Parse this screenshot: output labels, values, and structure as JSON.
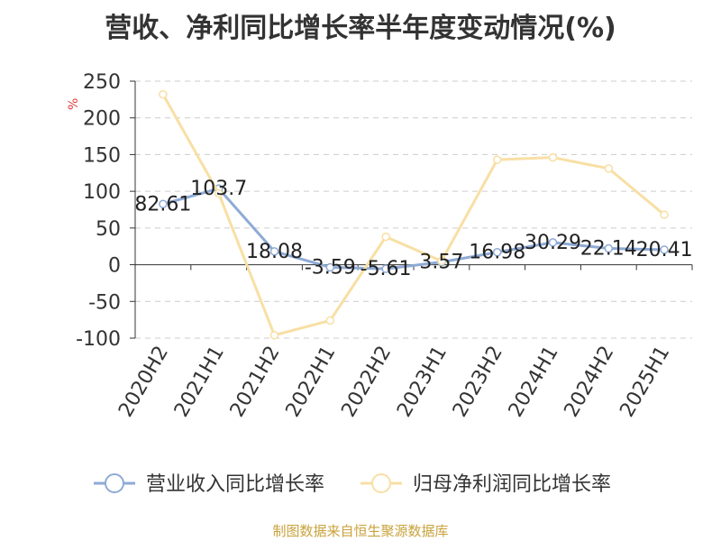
{
  "header": {
    "title": "营收、净利同比增长率半年度变动情况(%)"
  },
  "footer": {
    "source": "制图数据来自恒生聚源数据库"
  },
  "chart_data": {
    "type": "line",
    "title": "营收、净利同比增长率半年度变动情况(%)",
    "ylabel": "%",
    "ylim": [
      -100,
      250
    ],
    "yticks": [
      250,
      200,
      150,
      100,
      50,
      0,
      -50,
      -100
    ],
    "categories": [
      "2020H2",
      "2021H1",
      "2021H2",
      "2022H1",
      "2022H2",
      "2023H1",
      "2023H2",
      "2024H1",
      "2024H2",
      "2025H1"
    ],
    "series": [
      {
        "name": "营业收入同比增长率",
        "color": "#8eaad6",
        "values": [
          82.61,
          103.7,
          18.08,
          -3.59,
          -5.61,
          3.57,
          16.98,
          30.29,
          22.14,
          20.41
        ],
        "labels": [
          "82.61",
          "103.7",
          "18.08",
          "-3.59",
          "-5.61",
          "3.57",
          "16.98",
          "30.29",
          "22.14",
          "20.41"
        ]
      },
      {
        "name": "归母净利润同比增长率",
        "color": "#f8dfa4",
        "values": [
          232,
          97,
          -96,
          -76,
          38,
          5,
          143,
          146,
          131,
          68
        ]
      }
    ],
    "grid": true,
    "legend_position": "bottom"
  }
}
